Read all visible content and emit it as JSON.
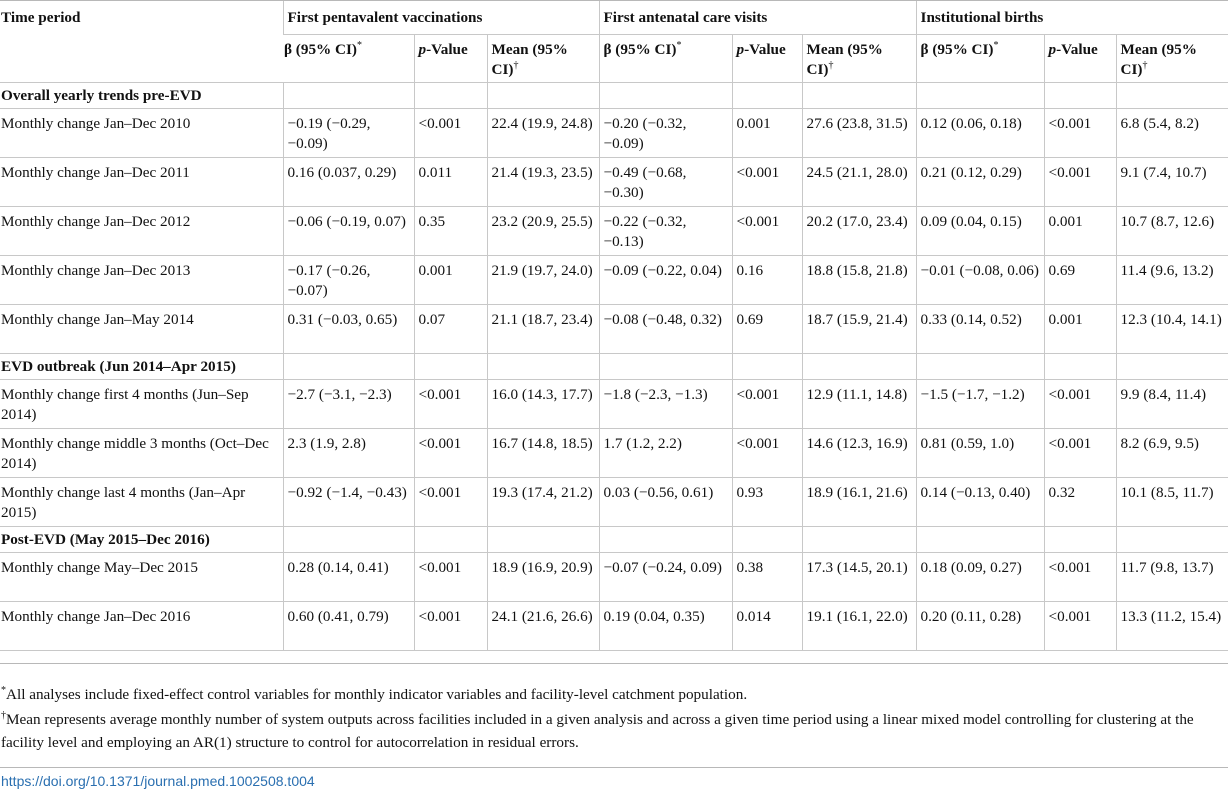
{
  "header": {
    "time_period": "Time period",
    "groups": [
      "First pentavalent vaccinations",
      "First antenatal care visits",
      "Institutional births"
    ],
    "sub": {
      "beta": "β (95% CI)",
      "beta_mark": "*",
      "pvalue_italic": "p",
      "pvalue_rest": "-Value",
      "mean": "Mean (95% CI)",
      "mean_mark": "†"
    }
  },
  "sections": [
    {
      "label": "Overall yearly trends pre-EVD",
      "rows": [
        {
          "period": "Monthly change Jan–Dec 2010",
          "cells": [
            "−0.19 (−0.29, −0.09)",
            "<0.001",
            "22.4 (19.9, 24.8)",
            "−0.20 (−0.32, −0.09)",
            "0.001",
            "27.6 (23.8, 31.5)",
            "0.12 (0.06, 0.18)",
            "<0.001",
            "6.8 (5.4, 8.2)"
          ]
        },
        {
          "period": "Monthly change Jan–Dec 2011",
          "cells": [
            "0.16 (0.037, 0.29)",
            "0.011",
            "21.4 (19.3, 23.5)",
            "−0.49 (−0.68, −0.30)",
            "<0.001",
            "24.5 (21.1, 28.0)",
            "0.21 (0.12, 0.29)",
            "<0.001",
            "9.1 (7.4, 10.7)"
          ]
        },
        {
          "period": "Monthly change Jan–Dec 2012",
          "cells": [
            "−0.06 (−0.19, 0.07)",
            "0.35",
            "23.2 (20.9, 25.5)",
            "−0.22 (−0.32, −0.13)",
            "<0.001",
            "20.2 (17.0, 23.4)",
            "0.09 (0.04, 0.15)",
            "0.001",
            "10.7 (8.7, 12.6)"
          ]
        },
        {
          "period": "Monthly change Jan–Dec 2013",
          "cells": [
            "−0.17 (−0.26, −0.07)",
            "0.001",
            "21.9 (19.7, 24.0)",
            "−0.09 (−0.22, 0.04)",
            "0.16",
            "18.8 (15.8, 21.8)",
            "−0.01 (−0.08, 0.06)",
            "0.69",
            "11.4 (9.6, 13.2)"
          ]
        },
        {
          "period": "Monthly change Jan–May 2014",
          "cells": [
            "0.31 (−0.03, 0.65)",
            "0.07",
            "21.1 (18.7, 23.4)",
            "−0.08 (−0.48, 0.32)",
            "0.69",
            "18.7 (15.9, 21.4)",
            "0.33 (0.14, 0.52)",
            "0.001",
            "12.3 (10.4, 14.1)"
          ]
        }
      ]
    },
    {
      "label": "EVD outbreak (Jun 2014–Apr 2015)",
      "rows": [
        {
          "period": "Monthly change first 4 months (Jun–Sep 2014)",
          "cells": [
            "−2.7 (−3.1, −2.3)",
            "<0.001",
            "16.0 (14.3, 17.7)",
            "−1.8 (−2.3, −1.3)",
            "<0.001",
            "12.9 (11.1, 14.8)",
            "−1.5 (−1.7, −1.2)",
            "<0.001",
            "9.9 (8.4, 11.4)"
          ]
        },
        {
          "period": "Monthly change middle 3 months (Oct–Dec 2014)",
          "cells": [
            "2.3 (1.9, 2.8)",
            "<0.001",
            "16.7 (14.8, 18.5)",
            "1.7 (1.2, 2.2)",
            "<0.001",
            "14.6 (12.3, 16.9)",
            "0.81 (0.59, 1.0)",
            "<0.001",
            "8.2 (6.9, 9.5)"
          ]
        },
        {
          "period": "Monthly change last 4 months (Jan–Apr 2015)",
          "cells": [
            "−0.92 (−1.4, −0.43)",
            "<0.001",
            "19.3 (17.4, 21.2)",
            "0.03 (−0.56, 0.61)",
            "0.93",
            "18.9 (16.1, 21.6)",
            "0.14 (−0.13, 0.40)",
            "0.32",
            "10.1 (8.5, 11.7)"
          ]
        }
      ]
    },
    {
      "label": "Post-EVD (May 2015–Dec 2016)",
      "rows": [
        {
          "period": "Monthly change May–Dec 2015",
          "cells": [
            "0.28 (0.14, 0.41)",
            "<0.001",
            "18.9 (16.9, 20.9)",
            "−0.07 (−0.24, 0.09)",
            "0.38",
            "17.3 (14.5, 20.1)",
            "0.18 (0.09, 0.27)",
            "<0.001",
            "11.7 (9.8, 13.7)"
          ]
        },
        {
          "period": "Monthly change Jan–Dec 2016",
          "cells": [
            "0.60 (0.41, 0.79)",
            "<0.001",
            "24.1 (21.6, 26.6)",
            "0.19 (0.04, 0.35)",
            "0.014",
            "19.1 (16.1, 22.0)",
            "0.20 (0.11, 0.28)",
            "<0.001",
            "13.3 (11.2, 15.4)"
          ]
        }
      ]
    }
  ],
  "footnotes": [
    {
      "mark": "*",
      "text": "All analyses include fixed-effect control variables for monthly indicator variables and facility-level catchment population."
    },
    {
      "mark": "†",
      "text": "Mean represents average monthly number of system outputs across facilities included in a given analysis and across a given time period using a linear mixed model controlling for clustering at the facility level and employing an AR(1) structure to control for autocorrelation in residual errors."
    }
  ],
  "doi": "https://doi.org/10.1371/journal.pmed.1002508.t004",
  "colors": {
    "link": "#2a6fb0",
    "rule": "#c8c8c8",
    "text": "#111111"
  }
}
